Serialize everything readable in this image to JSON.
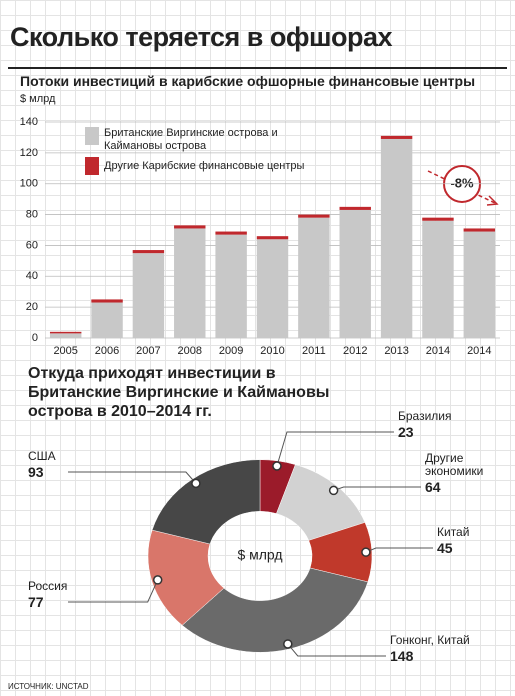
{
  "header": {
    "title": "Сколько теряется в офшорах"
  },
  "chart_data": [
    {
      "type": "bar",
      "title": "Потоки инвестиций в карибские офшорные финансовые центры",
      "y_label": "$ млрд",
      "categories": [
        "2005",
        "2006",
        "2007",
        "2008",
        "2009",
        "2010",
        "2011",
        "2012",
        "2013",
        "2014",
        "2014"
      ],
      "series": [
        {
          "name": "Британские Виргинские острова и Каймановы острова",
          "color": "#c8c8c8",
          "values": [
            3,
            23,
            55,
            71,
            67,
            64,
            78,
            83,
            129,
            76,
            69
          ]
        },
        {
          "name": "Другие Карибские финансовые центры",
          "color": "#c0282d",
          "values": [
            1,
            2,
            2,
            2,
            2,
            2,
            2,
            2,
            2,
            2,
            2
          ]
        }
      ],
      "ylim": [
        0,
        140
      ],
      "yticks": [
        0,
        20,
        40,
        60,
        80,
        100,
        120,
        140
      ],
      "grid": true,
      "annotation": "-8%"
    },
    {
      "type": "pie",
      "title": "Откуда приходят инвестиции в Британские Виргинские и Каймановы острова в 2010–2014 гг.",
      "center_label": "$ млрд",
      "categories": [
        "Бразилия",
        "Другие экономики",
        "Китай",
        "Гонконг, Китай",
        "Россия",
        "США"
      ],
      "values": [
        23,
        64,
        45,
        148,
        77,
        93
      ],
      "colors": [
        "#9b1b2a",
        "#d2d2d2",
        "#c0392b",
        "#6a6a6a",
        "#d9766a",
        "#474747"
      ]
    }
  ],
  "source": "ИСТОЧНИК: UNCTAD"
}
